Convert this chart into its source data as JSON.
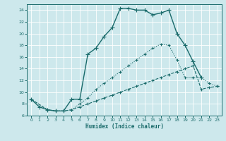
{
  "xlabel": "Humidex (Indice chaleur)",
  "xlim": [
    -0.5,
    23.5
  ],
  "ylim": [
    6,
    25
  ],
  "yticks": [
    6,
    8,
    10,
    12,
    14,
    16,
    18,
    20,
    22,
    24
  ],
  "xticks": [
    0,
    1,
    2,
    3,
    4,
    5,
    6,
    7,
    8,
    9,
    10,
    11,
    12,
    13,
    14,
    15,
    16,
    17,
    18,
    19,
    20,
    21,
    22,
    23
  ],
  "bg_color": "#cde8ec",
  "grid_color": "#b0d8de",
  "line_color": "#1a6b6b",
  "lines": [
    {
      "x": [
        0,
        1,
        2,
        3,
        4,
        5,
        6,
        7,
        8,
        9,
        10,
        11,
        12,
        13,
        14,
        15,
        16,
        17,
        18,
        19,
        20,
        21
      ],
      "y": [
        8.8,
        7.5,
        7.0,
        6.8,
        6.8,
        8.8,
        8.8,
        16.5,
        17.5,
        19.5,
        21.0,
        24.3,
        24.3,
        24.0,
        24.0,
        23.2,
        23.5,
        24.0,
        20.0,
        18.0,
        15.2,
        12.5
      ],
      "style": "-",
      "marker": "+",
      "markersize": 4,
      "linewidth": 1.0
    },
    {
      "x": [
        0,
        2,
        3,
        4,
        5,
        6,
        7,
        8,
        9,
        10,
        11,
        12,
        13,
        14,
        15,
        16,
        17,
        18,
        19,
        20,
        21,
        22,
        23
      ],
      "y": [
        8.8,
        7.0,
        6.8,
        6.8,
        7.0,
        8.0,
        9.0,
        10.5,
        11.5,
        12.5,
        13.5,
        14.5,
        15.5,
        16.5,
        17.5,
        18.2,
        18.0,
        15.5,
        12.5,
        12.5,
        12.5,
        11.5,
        11.0
      ],
      "style": "-",
      "marker": "+",
      "markersize": 3,
      "linewidth": 0.8
    },
    {
      "x": [
        0,
        2,
        3,
        4,
        5,
        6,
        7,
        8,
        9,
        10,
        11,
        12,
        13,
        14,
        15,
        16,
        17,
        18,
        19,
        20,
        21,
        22,
        23
      ],
      "y": [
        8.8,
        7.0,
        6.8,
        6.8,
        7.0,
        7.5,
        8.0,
        8.5,
        9.0,
        9.5,
        10.0,
        10.5,
        11.0,
        11.5,
        12.0,
        12.5,
        13.0,
        13.5,
        14.0,
        14.5,
        10.5,
        10.8,
        11.0
      ],
      "style": "-",
      "marker": "+",
      "markersize": 3,
      "linewidth": 0.8
    }
  ]
}
